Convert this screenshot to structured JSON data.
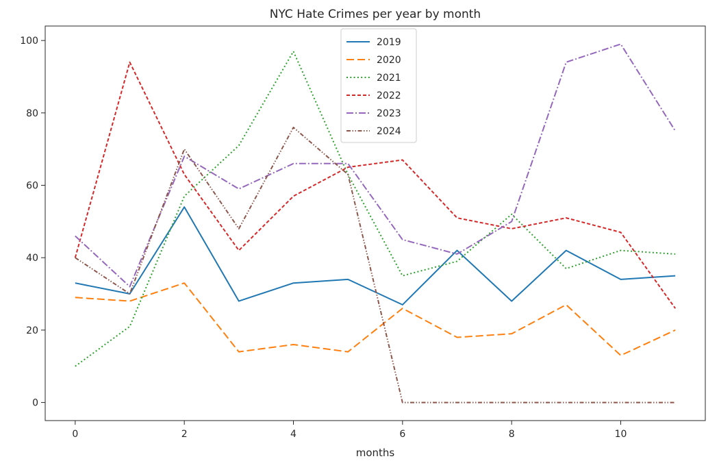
{
  "chart_data": {
    "type": "line",
    "title": "NYC Hate Crimes per year by month",
    "xlabel": "months",
    "ylabel": "",
    "x": [
      0,
      1,
      2,
      3,
      4,
      5,
      6,
      7,
      8,
      9,
      10,
      11
    ],
    "xlim": [
      -0.55,
      11.55
    ],
    "ylim": [
      -5,
      104
    ],
    "xticks": [
      0,
      2,
      4,
      6,
      8,
      10
    ],
    "yticks": [
      0,
      20,
      40,
      60,
      80,
      100
    ],
    "grid": false,
    "legend_position": "top-center",
    "series": [
      {
        "name": "2019",
        "color": "#1f77b4",
        "dash": "solid",
        "values": [
          33,
          30,
          54,
          28,
          33,
          34,
          27,
          42,
          28,
          42,
          34,
          35
        ]
      },
      {
        "name": "2020",
        "color": "#ff7f0e",
        "dash": "dashed",
        "values": [
          29,
          28,
          33,
          14,
          16,
          14,
          26,
          18,
          19,
          27,
          13,
          20
        ]
      },
      {
        "name": "2021",
        "color": "#2ca02c",
        "dash": "dotted",
        "values": [
          10,
          21,
          57,
          71,
          97,
          63,
          35,
          39,
          52,
          37,
          42,
          41
        ]
      },
      {
        "name": "2022",
        "color": "#d62728",
        "dash": "densely-dashed",
        "values": [
          40,
          94,
          63,
          42,
          57,
          65,
          67,
          51,
          48,
          51,
          47,
          26
        ]
      },
      {
        "name": "2023",
        "color": "#9467bd",
        "dash": "dash-dot",
        "values": [
          46,
          32,
          68,
          59,
          66,
          66,
          45,
          41,
          50,
          94,
          99,
          75
        ]
      },
      {
        "name": "2024",
        "color": "#8c564b",
        "dash": "dash-dot-dot",
        "values": [
          40,
          30,
          70,
          48,
          76,
          63,
          0,
          0,
          0,
          0,
          0,
          0
        ]
      }
    ]
  }
}
